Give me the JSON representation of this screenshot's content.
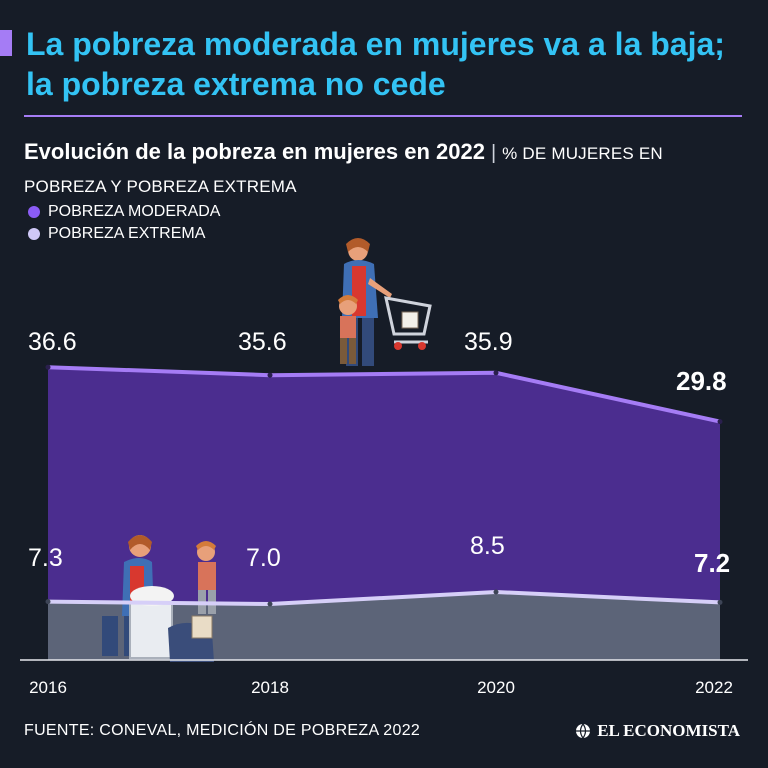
{
  "headline": "La pobreza moderada en mujeres va a la baja; la pobreza extrema no cede",
  "subtitle": {
    "strong": "Evolución de la pobreza en mujeres en 2022",
    "separator": "|",
    "desc": "% DE MUJERES EN POBREZA Y POBREZA EXTREMA"
  },
  "legend": [
    {
      "label": "POBREZA MODERADA",
      "color": "#8b5cf6"
    },
    {
      "label": "POBREZA EXTREMA",
      "color": "#cfc8f7"
    }
  ],
  "colors": {
    "accent": "#a57cf5",
    "title": "#33c3f4",
    "background": "#161c27",
    "moderada_fill": "#4b2d8f",
    "moderada_line": "#a57cf5",
    "extrema_fill": "#5c6478",
    "extrema_line": "#d6cff8"
  },
  "chart_data": {
    "type": "area",
    "title": "Evolución de la pobreza en mujeres en 2022",
    "ylabel": "% DE MUJERES EN POBREZA Y POBREZA EXTREMA",
    "xlabel": "",
    "categories": [
      "2016",
      "2018",
      "2020",
      "2022"
    ],
    "ylim": [
      0,
      50
    ],
    "series": [
      {
        "name": "POBREZA MODERADA",
        "values": [
          36.6,
          35.6,
          35.9,
          29.8
        ],
        "labels": [
          "36.6",
          "35.6",
          "35.9",
          "29.8"
        ]
      },
      {
        "name": "POBREZA EXTREMA",
        "values": [
          7.3,
          7.0,
          8.5,
          7.2
        ],
        "labels": [
          "7.3",
          "7.0",
          "8.5",
          "7.2"
        ]
      }
    ]
  },
  "footer": {
    "source": "FUENTE: CONEVAL, MEDICIÓN DE POBREZA 2022",
    "brand": "EL ECONOMISTA"
  }
}
